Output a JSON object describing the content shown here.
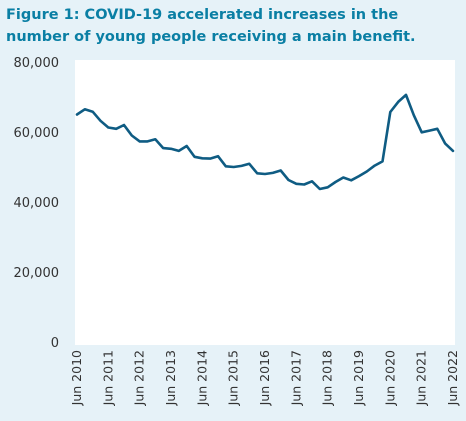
{
  "title": "Figure 1: COVID-19 accelerated increases in the number of young people receiving a main benefit.",
  "colors": {
    "line": "#0f5c83",
    "background": "#e6f2f8",
    "title": "#0a7fa4",
    "plot_area": "#ffffff"
  },
  "chart_data": {
    "type": "line",
    "title": "Figure 1: COVID-19 accelerated increases in the number of young people receiving a main benefit.",
    "xlabel": "",
    "ylabel": "",
    "ylim": [
      0,
      80000
    ],
    "grid": false,
    "legend": "none",
    "yticks": [
      0,
      20000,
      40000,
      60000,
      80000
    ],
    "ytick_labels": [
      "0",
      "20,000",
      "40,000",
      "60,000",
      "80,000"
    ],
    "xticks": [
      2010.5,
      2011.5,
      2012.5,
      2013.5,
      2014.5,
      2015.5,
      2016.5,
      2017.5,
      2018.5,
      2019.5,
      2020.5,
      2021.5,
      2022.5
    ],
    "xtick_labels": [
      "Jun 2010",
      "Jun 2011",
      "Jun 2012",
      "Jun 2013",
      "Jun 2014",
      "Jun 2015",
      "Jun 2016",
      "Jun 2017",
      "Jun 2018",
      "Jun 2019",
      "Jun 2020",
      "Jun 2021",
      "Jun 2022"
    ],
    "xlim": [
      2010.5,
      2022.5
    ],
    "series": [
      {
        "x": [
          2010.5,
          2010.75,
          2011.0,
          2011.25,
          2011.5,
          2011.75,
          2012.0,
          2012.25,
          2012.5,
          2012.75,
          2013.0,
          2013.25,
          2013.5,
          2013.75,
          2014.0,
          2014.25,
          2014.5,
          2014.75,
          2015.0,
          2015.25,
          2015.5,
          2015.75,
          2016.0,
          2016.25,
          2016.5,
          2016.75,
          2017.0,
          2017.25,
          2017.5,
          2017.75,
          2018.0,
          2018.25,
          2018.5,
          2018.75,
          2019.0,
          2019.25,
          2019.5,
          2019.75,
          2020.0,
          2020.25,
          2020.5,
          2020.75,
          2021.0,
          2021.25,
          2021.5,
          2021.75,
          2022.0,
          2022.25,
          2022.5
        ],
        "values": [
          65000,
          66500,
          65800,
          63200,
          61300,
          60900,
          62000,
          59000,
          57300,
          57300,
          57900,
          55400,
          55200,
          54600,
          56000,
          52900,
          52500,
          52400,
          53100,
          50200,
          50000,
          50300,
          50900,
          48200,
          48000,
          48300,
          49000,
          46300,
          45200,
          45000,
          45900,
          43700,
          44200,
          45700,
          47000,
          46200,
          47400,
          48700,
          50400,
          51600,
          65700,
          68600,
          70600,
          64800,
          59900,
          60400,
          60900,
          56700,
          54600
        ]
      }
    ]
  }
}
